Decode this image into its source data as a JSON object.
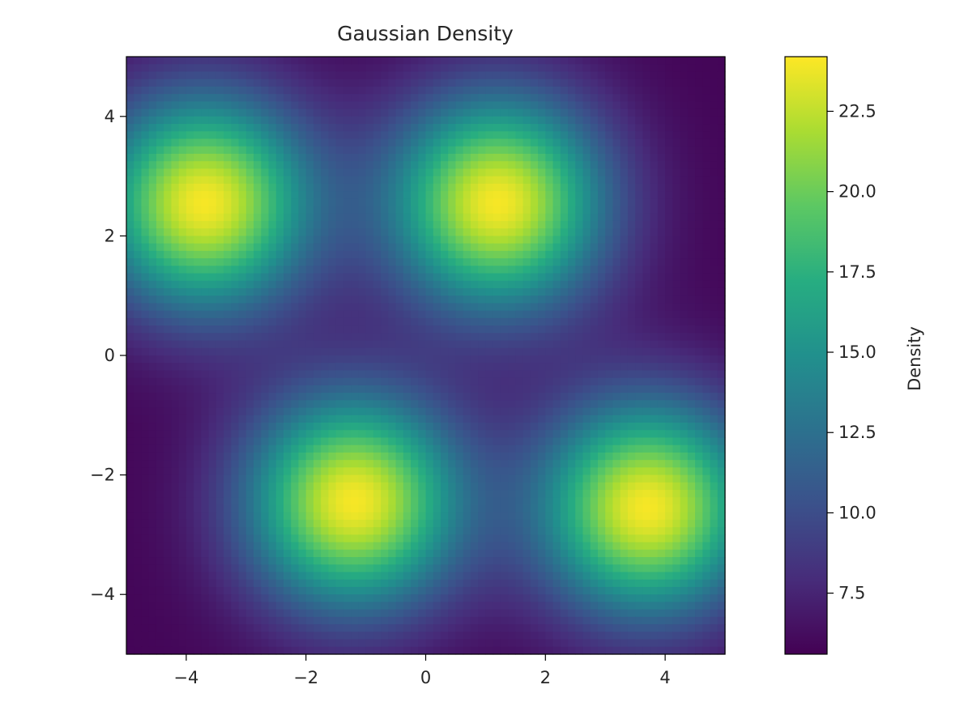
{
  "chart_data": {
    "type": "heatmap",
    "title": "Gaussian Density",
    "xlabel": "",
    "ylabel": "",
    "colorbar_label": "Density",
    "colormap": "viridis",
    "xlim": [
      -5,
      5
    ],
    "ylim": [
      -5,
      5
    ],
    "x_ticks": [
      -4,
      -2,
      0,
      2,
      4
    ],
    "y_ticks": [
      -4,
      -2,
      0,
      2,
      4
    ],
    "x_tick_labels": [
      "−4",
      "−2",
      "0",
      "2",
      "4"
    ],
    "y_tick_labels": [
      "−4",
      "−2",
      "0",
      "2",
      "4"
    ],
    "colorbar_range": [
      5.6,
      24.2
    ],
    "colorbar_ticks": [
      7.5,
      10.0,
      12.5,
      15.0,
      17.5,
      20.0,
      22.5
    ],
    "colorbar_tick_labels": [
      "7.5",
      "10.0",
      "12.5",
      "15.0",
      "17.5",
      "20.0",
      "22.5"
    ],
    "grid": false,
    "peaks": [
      {
        "x": -3.7,
        "y": 2.55,
        "value": 24.0
      },
      {
        "x": 1.2,
        "y": 2.55,
        "value": 24.0
      },
      {
        "x": -1.2,
        "y": -2.45,
        "value": 24.0
      },
      {
        "x": 3.7,
        "y": -2.55,
        "value": 24.0
      }
    ],
    "background_value": 5.8,
    "peak_width": 1.25
  }
}
